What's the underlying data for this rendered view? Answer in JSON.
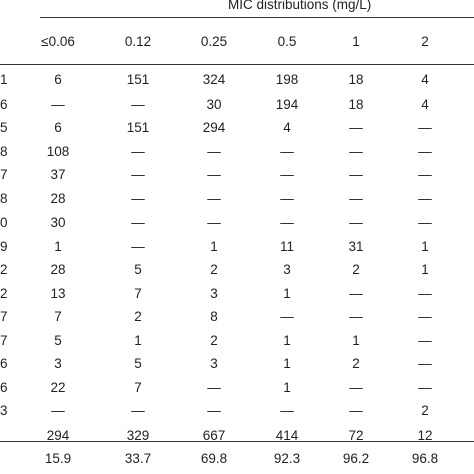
{
  "table": {
    "group_header": "MIC distributions (mg/L)",
    "columns": [
      "≤0.06",
      "0.12",
      "0.25",
      "0.5",
      "1",
      "2"
    ],
    "rows": [
      {
        "stub": "1",
        "cells": [
          "6",
          "151",
          "324",
          "198",
          "18",
          "4"
        ]
      },
      {
        "stub": "6",
        "cells": [
          "—",
          "—",
          "30",
          "194",
          "18",
          "4"
        ]
      },
      {
        "stub": "5",
        "cells": [
          "6",
          "151",
          "294",
          "4",
          "—",
          "—"
        ]
      },
      {
        "stub": "8",
        "cells": [
          "108",
          "—",
          "—",
          "—",
          "—",
          "—"
        ]
      },
      {
        "stub": "7",
        "cells": [
          "37",
          "—",
          "—",
          "—",
          "—",
          "—"
        ]
      },
      {
        "stub": "8",
        "cells": [
          "28",
          "—",
          "—",
          "—",
          "—",
          "—"
        ]
      },
      {
        "stub": "0",
        "cells": [
          "30",
          "—",
          "—",
          "—",
          "—",
          "—"
        ]
      },
      {
        "stub": "9",
        "cells": [
          "1",
          "—",
          "1",
          "11",
          "31",
          "1"
        ]
      },
      {
        "stub": "2",
        "cells": [
          "28",
          "5",
          "2",
          "3",
          "2",
          "1"
        ]
      },
      {
        "stub": "2",
        "cells": [
          "13",
          "7",
          "3",
          "1",
          "—",
          "—"
        ]
      },
      {
        "stub": "7",
        "cells": [
          "7",
          "2",
          "8",
          "—",
          "—",
          "—"
        ]
      },
      {
        "stub": "7",
        "cells": [
          "5",
          "1",
          "2",
          "1",
          "1",
          "—"
        ]
      },
      {
        "stub": "6",
        "cells": [
          "3",
          "5",
          "3",
          "1",
          "2",
          "—"
        ]
      },
      {
        "stub": "6",
        "cells": [
          "22",
          "7",
          "—",
          "1",
          "—",
          "—"
        ]
      },
      {
        "stub": "3",
        "cells": [
          "—",
          "—",
          "—",
          "—",
          "—",
          "2"
        ]
      },
      {
        "stub": "",
        "cells": [
          "294",
          "329",
          "667",
          "414",
          "72",
          "12"
        ]
      },
      {
        "stub": "",
        "cells": [
          "15.9",
          "33.7",
          "69.8",
          "92.3",
          "96.2",
          "96.8"
        ]
      }
    ]
  }
}
